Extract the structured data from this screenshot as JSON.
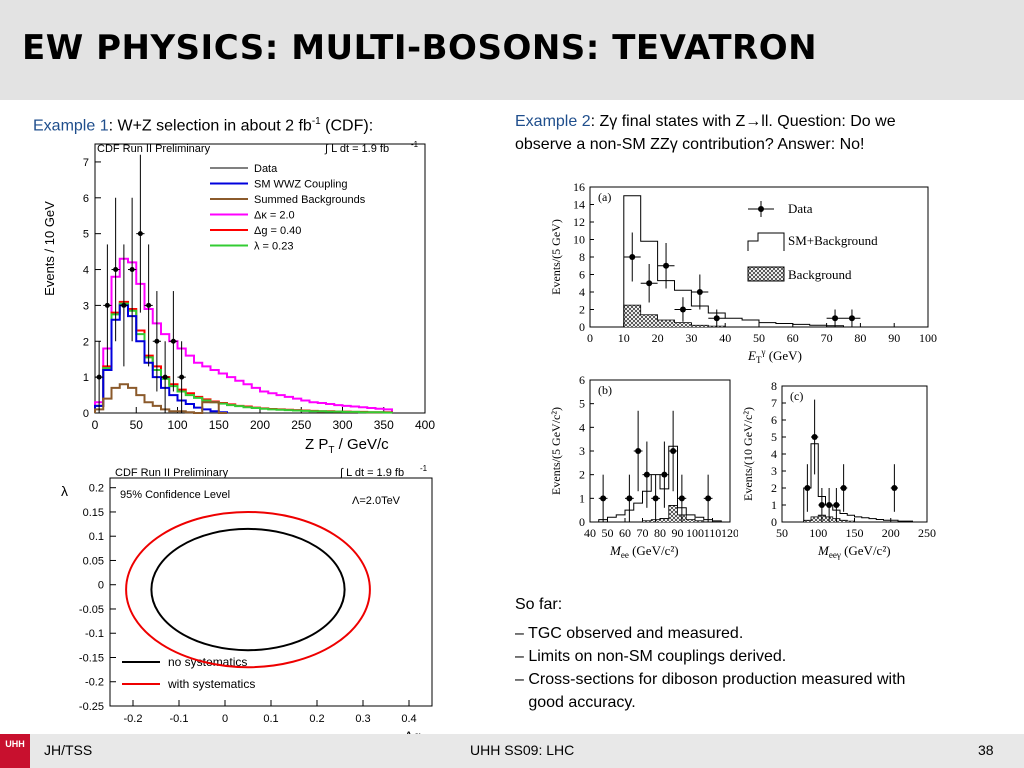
{
  "slide": {
    "title": "EW PHYSICS: MULTI-BOSONS: TEVATRON",
    "footer_left": "JH/TSS",
    "footer_center": "UHH SS09: LHC",
    "page_number": "38",
    "logo_text": "UHH"
  },
  "example1": {
    "label": "Example 1",
    "text_a": ": W+Z selection in about 2 fb",
    "sup": "-1",
    "text_b": " (CDF):"
  },
  "example2": {
    "label": "Example 2",
    "line1": ": Zγ final states with Z→ll. Question: Do we",
    "line2": "observe a non-SM ZZγ contribution? Answer: No!"
  },
  "sofar": {
    "heading": "So far:",
    "items": [
      "– TGC observed and measured.",
      "– Limits on non-SM couplings derived.",
      "– Cross-sections for diboson production measured with",
      "   good accuracy."
    ]
  },
  "colors": {
    "data": "#000000",
    "sm_wwz": "#0000dd",
    "summed_bg": "#8b5a2b",
    "dkappa": "#ff00ff",
    "dg": "#ff0000",
    "lambda": "#33cc33",
    "label_blue": "#1f4e8c"
  },
  "chart_data": [
    {
      "type": "line",
      "title": "CDF Run II Preliminary",
      "lumi": "∫ L dt = 1.9 fb",
      "lumi_sup": "-1",
      "xlabel": "Z P",
      "xlabel_sub": "T",
      "xlabel_unit": " / GeV/c",
      "ylabel": "Events / 10 GeV",
      "xlim": [
        0,
        400
      ],
      "ylim": [
        0,
        7.5
      ],
      "xticks": [
        0,
        50,
        100,
        150,
        200,
        250,
        300,
        350,
        400
      ],
      "yticks": [
        0,
        1,
        2,
        3,
        4,
        5,
        6,
        7
      ],
      "bin_width": 10,
      "legend": [
        "Data",
        "SM WWZ Coupling",
        "Summed Backgrounds",
        "Δκ = 2.0",
        "Δg = 0.40",
        "λ = 0.23"
      ],
      "series": [
        {
          "name": "SM WWZ Coupling",
          "values": [
            0.2,
            1.2,
            2.6,
            3.0,
            2.7,
            2.0,
            1.4,
            1.0,
            0.7,
            0.5,
            0.35,
            0.25,
            0.15,
            0.1,
            0.05,
            0.02
          ]
        },
        {
          "name": "Summed Backgrounds",
          "values": [
            0.1,
            0.4,
            0.7,
            0.8,
            0.7,
            0.5,
            0.3,
            0.2,
            0.1,
            0.05,
            0.05,
            0.02,
            0.0,
            0.3,
            0.3,
            0.0
          ]
        },
        {
          "name": "Δκ = 2.0",
          "values": [
            0.3,
            1.8,
            3.8,
            4.3,
            4.2,
            3.6,
            2.9,
            2.5,
            2.2,
            2.0,
            1.8,
            1.6,
            1.4,
            1.3,
            1.2,
            1.1,
            1.0,
            0.9,
            0.8,
            0.7,
            0.6,
            0.55,
            0.5,
            0.45,
            0.4,
            0.35,
            0.3,
            0.28,
            0.25,
            0.22,
            0.2,
            0.18,
            0.16,
            0.14,
            0.12,
            0.1
          ]
        },
        {
          "name": "Δg = 0.40",
          "values": [
            0.2,
            1.3,
            2.8,
            3.1,
            2.9,
            2.3,
            1.6,
            1.3,
            1.0,
            0.8,
            0.65,
            0.55,
            0.45,
            0.38,
            0.32,
            0.28,
            0.24,
            0.2,
            0.18,
            0.15,
            0.13,
            0.11,
            0.1,
            0.09,
            0.08,
            0.07,
            0.06,
            0.05,
            0.05,
            0.04,
            0.04,
            0.03,
            0.03,
            0.02,
            0.02,
            0.02
          ]
        },
        {
          "name": "λ = 0.23",
          "values": [
            0.2,
            1.25,
            2.75,
            3.05,
            2.85,
            2.2,
            1.55,
            1.2,
            0.95,
            0.75,
            0.6,
            0.5,
            0.42,
            0.35,
            0.3,
            0.26,
            0.22,
            0.19,
            0.16,
            0.14,
            0.12,
            0.1,
            0.09,
            0.08,
            0.07,
            0.06,
            0.05,
            0.05,
            0.04,
            0.04,
            0.03,
            0.03,
            0.02,
            0.02,
            0.02,
            0.01
          ]
        }
      ],
      "data_points": [
        {
          "x": 5,
          "y": 1,
          "err": 1
        },
        {
          "x": 15,
          "y": 3,
          "err": 1.7
        },
        {
          "x": 25,
          "y": 4,
          "err": 2
        },
        {
          "x": 35,
          "y": 3,
          "err": 1.7
        },
        {
          "x": 45,
          "y": 4,
          "err": 2
        },
        {
          "x": 55,
          "y": 5,
          "err": 2.2
        },
        {
          "x": 65,
          "y": 3,
          "err": 1.7
        },
        {
          "x": 75,
          "y": 2,
          "err": 1.4
        },
        {
          "x": 85,
          "y": 1,
          "err": 1
        },
        {
          "x": 95,
          "y": 2,
          "err": 1.4
        },
        {
          "x": 105,
          "y": 1,
          "err": 1
        }
      ]
    },
    {
      "type": "contour",
      "title": "CDF Run II Preliminary",
      "lumi": "∫ L dt = 1.9 fb",
      "lumi_sup": "-1",
      "subtitle": "95% Confidence Level",
      "annotation": "Λ=2.0TeV",
      "xlabel": "Δg",
      "ylabel": "λ",
      "xlim": [
        -0.25,
        0.45
      ],
      "ylim": [
        -0.25,
        0.22
      ],
      "xticks": [
        -0.2,
        -0.1,
        0,
        0.1,
        0.2,
        0.3,
        0.4
      ],
      "yticks": [
        -0.25,
        -0.2,
        -0.15,
        -0.1,
        -0.05,
        0,
        0.05,
        0.1,
        0.15,
        0.2
      ],
      "series": [
        {
          "name": "no systematics",
          "center": [
            0.05,
            -0.01
          ],
          "semi_axes": [
            0.21,
            0.125
          ]
        },
        {
          "name": "with systematics",
          "center": [
            0.05,
            -0.01
          ],
          "semi_axes": [
            0.265,
            0.16
          ]
        }
      ]
    },
    {
      "type": "histogram",
      "panel": "(a)",
      "xlabel": "E",
      "xlabel_sub": "T",
      "xlabel_sup": "γ",
      "xlabel_unit": "(GeV)",
      "ylabel": "Events/(5 GeV)",
      "xlim": [
        0,
        100
      ],
      "ylim": [
        0,
        16
      ],
      "xticks": [
        0,
        10,
        20,
        30,
        40,
        50,
        60,
        70,
        80,
        90,
        100
      ],
      "yticks": [
        0,
        2,
        4,
        6,
        8,
        10,
        12,
        14,
        16
      ],
      "legend": [
        "Data",
        "SM+Background",
        "Background"
      ],
      "bin_width": 5,
      "bin_start": 10,
      "sm_bg": [
        15,
        9.8,
        5.3,
        4.2,
        2.4,
        1.6,
        1.0,
        0.8,
        0.5,
        0.4,
        0.3,
        0.2,
        0.15
      ],
      "bg": [
        2.5,
        1.4,
        0.8,
        0.5,
        0.2,
        0.1
      ],
      "data_points": [
        {
          "x": 12.5,
          "y": 8,
          "err": 2.8
        },
        {
          "x": 17.5,
          "y": 5,
          "err": 2.2
        },
        {
          "x": 22.5,
          "y": 7,
          "err": 2.6
        },
        {
          "x": 27.5,
          "y": 2,
          "err": 1.4
        },
        {
          "x": 32.5,
          "y": 4,
          "err": 2
        },
        {
          "x": 37.5,
          "y": 1,
          "err": 1
        },
        {
          "x": 72.5,
          "y": 1,
          "err": 1
        },
        {
          "x": 77.5,
          "y": 1,
          "err": 1
        }
      ]
    },
    {
      "type": "histogram",
      "panel": "(b)",
      "xlabel": "M",
      "xlabel_sub": "ee",
      "xlabel_unit": "(GeV/c²)",
      "ylabel": "Events/(5 GeV/c²)",
      "xlim": [
        40,
        120
      ],
      "ylim": [
        0,
        6
      ],
      "xticks": [
        40,
        50,
        60,
        70,
        80,
        90,
        100,
        110,
        120
      ],
      "yticks": [
        0,
        1,
        2,
        3,
        4,
        5,
        6
      ],
      "bin_width": 5,
      "bin_start": 45,
      "sm_bg": [
        0.1,
        0.2,
        0.3,
        0.5,
        0.8,
        1.3,
        2.0,
        1.4,
        3.2,
        0.6,
        0.3,
        0.2,
        0.1,
        0.05,
        0.0
      ],
      "bg": [
        0,
        0,
        0,
        0,
        0,
        0.05,
        0.1,
        0.15,
        0.7,
        0.3,
        0.1,
        0.05,
        0,
        0,
        0
      ],
      "data_points": [
        {
          "x": 47.5,
          "y": 1,
          "err": 1
        },
        {
          "x": 62.5,
          "y": 1,
          "err": 1
        },
        {
          "x": 67.5,
          "y": 3,
          "err": 1.7
        },
        {
          "x": 72.5,
          "y": 2,
          "err": 1.4
        },
        {
          "x": 77.5,
          "y": 1,
          "err": 1
        },
        {
          "x": 82.5,
          "y": 2,
          "err": 1.4
        },
        {
          "x": 87.5,
          "y": 3,
          "err": 1.7
        },
        {
          "x": 92.5,
          "y": 1,
          "err": 1
        },
        {
          "x": 107.5,
          "y": 1,
          "err": 1
        }
      ]
    },
    {
      "type": "histogram",
      "panel": "(c)",
      "xlabel": "M",
      "xlabel_sub": "eeγ",
      "xlabel_unit": "(GeV/c²)",
      "ylabel": "Events/(10 GeV/c²)",
      "xlim": [
        50,
        250
      ],
      "ylim": [
        0,
        8
      ],
      "xticks": [
        50,
        100,
        150,
        200,
        250
      ],
      "yticks": [
        0,
        1,
        2,
        3,
        4,
        5,
        6,
        7,
        8
      ],
      "bin_width": 10,
      "bin_start": 80,
      "sm_bg": [
        2.0,
        4.6,
        1.5,
        1.0,
        0.7,
        0.5,
        0.4,
        0.3,
        0.25,
        0.2,
        0.15,
        0.1,
        0.1,
        0.05,
        0.05
      ],
      "bg": [
        0.1,
        0.3,
        0.4,
        0.3,
        0.2,
        0.1,
        0.05
      ],
      "data_points": [
        {
          "x": 85,
          "y": 2,
          "err": 1.4
        },
        {
          "x": 95,
          "y": 5,
          "err": 2.2
        },
        {
          "x": 105,
          "y": 1,
          "err": 1
        },
        {
          "x": 115,
          "y": 1,
          "err": 1
        },
        {
          "x": 125,
          "y": 1,
          "err": 1
        },
        {
          "x": 135,
          "y": 2,
          "err": 1.4
        },
        {
          "x": 205,
          "y": 2,
          "err": 1.4
        }
      ]
    }
  ]
}
